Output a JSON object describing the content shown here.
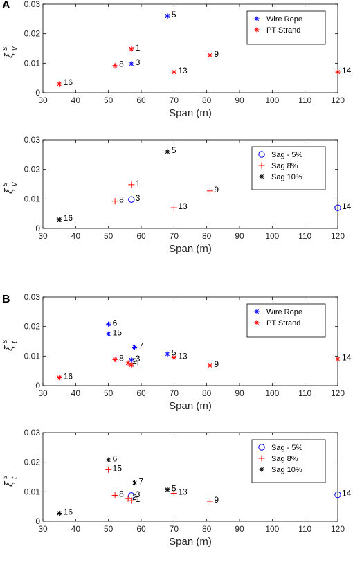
{
  "figure": {
    "panel_letters": [
      "A",
      "B"
    ]
  },
  "chart_data": [
    {
      "type": "scatter",
      "panel": "A",
      "ylabel_symbol": "ξ",
      "ylabel_sup": "s",
      "ylabel_sub": "v",
      "xlabel": "Span (m)",
      "xlim": [
        30,
        120
      ],
      "ylim": [
        0,
        0.03
      ],
      "xticks": [
        "30",
        "40",
        "50",
        "60",
        "70",
        "80",
        "90",
        "100",
        "110",
        "120"
      ],
      "yticks": [
        "0",
        "0.01",
        "0.02",
        "0.03"
      ],
      "grid": false,
      "legend_position": "top-right",
      "series": [
        {
          "name": "Wire Rope",
          "marker": "asterisk",
          "color": "#0000ff",
          "points": [
            {
              "x": 68,
              "y": 0.026,
              "label": "5"
            },
            {
              "x": 57,
              "y": 0.0098,
              "label": "3"
            }
          ]
        },
        {
          "name": "PT Strand",
          "marker": "asterisk",
          "color": "#ff0000",
          "points": [
            {
              "x": 57,
              "y": 0.0148,
              "label": "1"
            },
            {
              "x": 52,
              "y": 0.0092,
              "label": "8"
            },
            {
              "x": 35,
              "y": 0.003,
              "label": "16"
            },
            {
              "x": 70,
              "y": 0.007,
              "label": "13"
            },
            {
              "x": 81,
              "y": 0.0127,
              "label": "9"
            },
            {
              "x": 120,
              "y": 0.007,
              "label": "14"
            }
          ]
        }
      ]
    },
    {
      "type": "scatter",
      "panel": "A",
      "ylabel_symbol": "ξ",
      "ylabel_sup": "s",
      "ylabel_sub": "v",
      "xlabel": "Span (m)",
      "xlim": [
        30,
        120
      ],
      "ylim": [
        0,
        0.03
      ],
      "xticks": [
        "30",
        "40",
        "50",
        "60",
        "70",
        "80",
        "90",
        "100",
        "110",
        "120"
      ],
      "yticks": [
        "0",
        "0.01",
        "0.02",
        "0.03"
      ],
      "grid": false,
      "legend_position": "top-right",
      "series": [
        {
          "name": "Sag - 5%",
          "marker": "circle",
          "color": "#0000ff",
          "points": [
            {
              "x": 57,
              "y": 0.0098,
              "label": "3"
            },
            {
              "x": 120,
              "y": 0.007,
              "label": "14"
            }
          ]
        },
        {
          "name": "Sag 8%",
          "marker": "plus",
          "color": "#ff0000",
          "points": [
            {
              "x": 57,
              "y": 0.0148,
              "label": "1"
            },
            {
              "x": 52,
              "y": 0.0092,
              "label": "8"
            },
            {
              "x": 70,
              "y": 0.007,
              "label": "13"
            },
            {
              "x": 81,
              "y": 0.0127,
              "label": "9"
            }
          ]
        },
        {
          "name": "Sag 10%",
          "marker": "asterisk",
          "color": "#000000",
          "points": [
            {
              "x": 68,
              "y": 0.026,
              "label": "5"
            },
            {
              "x": 35,
              "y": 0.003,
              "label": "16"
            }
          ]
        }
      ]
    },
    {
      "type": "scatter",
      "panel": "B",
      "ylabel_symbol": "ξ",
      "ylabel_sup": "s",
      "ylabel_sub": "t",
      "xlabel": "Span (m)",
      "xlim": [
        30,
        120
      ],
      "ylim": [
        0,
        0.03
      ],
      "xticks": [
        "30",
        "40",
        "50",
        "60",
        "70",
        "80",
        "90",
        "100",
        "110",
        "120"
      ],
      "yticks": [
        "0",
        "0.01",
        "0.02",
        "0.03"
      ],
      "grid": false,
      "legend_position": "top-right",
      "series": [
        {
          "name": "Wire Rope",
          "marker": "asterisk",
          "color": "#0000ff",
          "points": [
            {
              "x": 50,
              "y": 0.0208,
              "label": "6"
            },
            {
              "x": 50,
              "y": 0.0175,
              "label": "15"
            },
            {
              "x": 58,
              "y": 0.013,
              "label": "7"
            },
            {
              "x": 57,
              "y": 0.0087,
              "label": "3"
            },
            {
              "x": 68,
              "y": 0.0107,
              "label": "5"
            }
          ]
        },
        {
          "name": "PT Strand",
          "marker": "asterisk",
          "color": "#ff0000",
          "points": [
            {
              "x": 52,
              "y": 0.0088,
              "label": "8"
            },
            {
              "x": 56,
              "y": 0.0077,
              "label": "2"
            },
            {
              "x": 57,
              "y": 0.007,
              "label": "1"
            },
            {
              "x": 35,
              "y": 0.0027,
              "label": "16"
            },
            {
              "x": 70,
              "y": 0.0095,
              "label": "13"
            },
            {
              "x": 81,
              "y": 0.0068,
              "label": "9"
            },
            {
              "x": 120,
              "y": 0.009,
              "label": "14"
            }
          ]
        }
      ]
    },
    {
      "type": "scatter",
      "panel": "B",
      "ylabel_symbol": "ξ",
      "ylabel_sup": "s",
      "ylabel_sub": "t",
      "xlabel": "Span (m)",
      "xlim": [
        30,
        120
      ],
      "ylim": [
        0,
        0.03
      ],
      "xticks": [
        "30",
        "40",
        "50",
        "60",
        "70",
        "80",
        "90",
        "100",
        "110",
        "120"
      ],
      "yticks": [
        "0",
        "0.01",
        "0.02",
        "0.03"
      ],
      "grid": false,
      "legend_position": "top-right",
      "series": [
        {
          "name": "Sag - 5%",
          "marker": "circle",
          "color": "#0000ff",
          "points": [
            {
              "x": 57,
              "y": 0.0087,
              "label": "3"
            },
            {
              "x": 120,
              "y": 0.009,
              "label": "14"
            }
          ]
        },
        {
          "name": "Sag 8%",
          "marker": "plus",
          "color": "#ff0000",
          "points": [
            {
              "x": 50,
              "y": 0.0175,
              "label": "15"
            },
            {
              "x": 52,
              "y": 0.0088,
              "label": "8"
            },
            {
              "x": 56,
              "y": 0.0077,
              "label": "2"
            },
            {
              "x": 57,
              "y": 0.007,
              "label": "1"
            },
            {
              "x": 70,
              "y": 0.0095,
              "label": "13"
            },
            {
              "x": 81,
              "y": 0.0068,
              "label": "9"
            }
          ]
        },
        {
          "name": "Sag 10%",
          "marker": "asterisk",
          "color": "#000000",
          "points": [
            {
              "x": 50,
              "y": 0.0208,
              "label": "6"
            },
            {
              "x": 58,
              "y": 0.013,
              "label": "7"
            },
            {
              "x": 68,
              "y": 0.0107,
              "label": "5"
            },
            {
              "x": 35,
              "y": 0.0027,
              "label": "16"
            }
          ]
        }
      ]
    }
  ]
}
